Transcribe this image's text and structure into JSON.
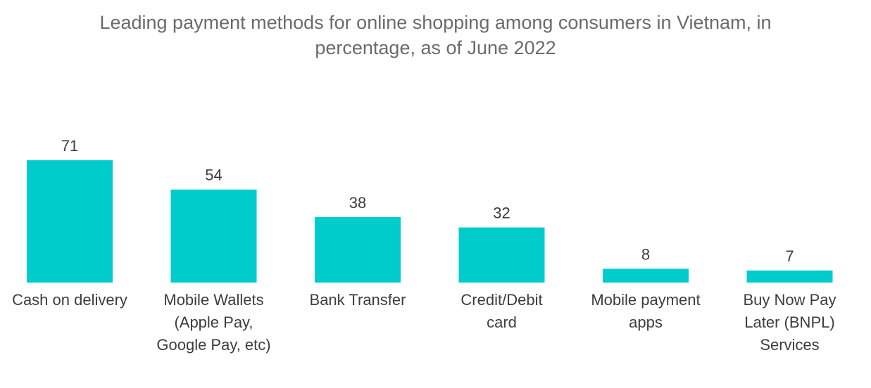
{
  "chart_data": {
    "type": "bar",
    "title": [
      "Leading payment methods for online shopping among consumers in Vietnam, in",
      "percentage, as of June 2022"
    ],
    "categories": [
      [
        "Cash on delivery"
      ],
      [
        "Mobile Wallets",
        "(Apple Pay,",
        "Google Pay, etc)"
      ],
      [
        "Bank Transfer"
      ],
      [
        "Credit/Debit",
        "card"
      ],
      [
        "Mobile payment",
        "apps"
      ],
      [
        "Buy Now Pay",
        "Later (BNPL)",
        "Services"
      ]
    ],
    "values": [
      71,
      54,
      38,
      32,
      8,
      7
    ],
    "xlabel": "",
    "ylabel": "",
    "ylim": [
      0,
      71
    ],
    "grid": false,
    "colors": {
      "bar": "#00CCCC",
      "text": "#3d3d3d",
      "title": "#6b6b6b"
    }
  }
}
